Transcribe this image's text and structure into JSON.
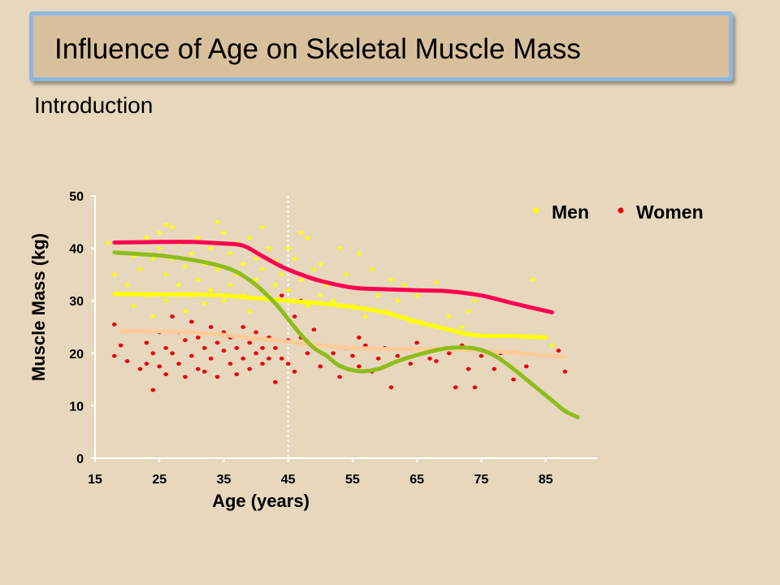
{
  "slide": {
    "title": "Influence of Age on Skeletal Muscle Mass",
    "subtitle": "Introduction"
  },
  "chart_data": {
    "type": "scatter",
    "xlabel": "Age (years)",
    "ylabel": "Muscle Mass (kg)",
    "xlim": [
      15,
      93
    ],
    "ylim": [
      0,
      50
    ],
    "xticks": [
      15,
      25,
      35,
      45,
      55,
      65,
      75,
      85
    ],
    "yticks": [
      0,
      10,
      20,
      30,
      40,
      50
    ],
    "reference_line_x": 45,
    "legend": {
      "placement": "top-right",
      "entries": [
        {
          "label": "Men",
          "color": "#ffff00"
        },
        {
          "label": "Women",
          "color": "#e8000a"
        }
      ]
    },
    "scatter_series": [
      {
        "name": "Men",
        "color": "#ffff00",
        "points": [
          [
            17,
            41
          ],
          [
            18,
            35
          ],
          [
            18,
            25.5
          ],
          [
            20,
            33
          ],
          [
            21,
            38.5
          ],
          [
            21,
            29
          ],
          [
            22,
            36
          ],
          [
            23,
            42
          ],
          [
            23,
            31
          ],
          [
            24,
            38
          ],
          [
            24,
            27
          ],
          [
            25,
            43
          ],
          [
            25,
            40
          ],
          [
            26,
            44.5
          ],
          [
            26,
            35
          ],
          [
            26,
            30
          ],
          [
            27,
            44
          ],
          [
            27,
            38
          ],
          [
            28,
            41
          ],
          [
            28,
            33
          ],
          [
            29,
            36.5
          ],
          [
            29,
            28
          ],
          [
            30,
            39
          ],
          [
            30,
            31
          ],
          [
            31,
            42
          ],
          [
            31,
            34
          ],
          [
            32,
            37
          ],
          [
            32,
            29.5
          ],
          [
            33,
            40
          ],
          [
            33,
            32
          ],
          [
            34,
            45
          ],
          [
            34,
            36
          ],
          [
            35,
            43
          ],
          [
            35,
            30
          ],
          [
            36,
            39
          ],
          [
            36,
            33
          ],
          [
            37,
            41
          ],
          [
            37,
            35
          ],
          [
            38,
            37
          ],
          [
            38,
            31
          ],
          [
            39,
            42
          ],
          [
            39,
            28
          ],
          [
            40,
            38
          ],
          [
            40,
            34
          ],
          [
            41,
            44
          ],
          [
            41,
            36
          ],
          [
            42,
            40
          ],
          [
            42,
            31
          ],
          [
            43,
            37.5
          ],
          [
            43,
            33
          ],
          [
            44,
            35
          ],
          [
            45,
            40
          ],
          [
            45,
            32
          ],
          [
            46,
            38
          ],
          [
            46,
            30
          ],
          [
            47,
            43
          ],
          [
            47,
            34
          ],
          [
            48,
            42
          ],
          [
            48,
            29
          ],
          [
            49,
            36
          ],
          [
            50,
            37
          ],
          [
            50,
            31
          ],
          [
            51,
            33
          ],
          [
            52,
            30
          ],
          [
            53,
            40
          ],
          [
            54,
            35
          ],
          [
            55,
            29
          ],
          [
            56,
            39
          ],
          [
            57,
            27
          ],
          [
            58,
            36
          ],
          [
            59,
            31
          ],
          [
            60,
            28
          ],
          [
            61,
            34
          ],
          [
            62,
            30
          ],
          [
            63,
            33
          ],
          [
            64,
            26
          ],
          [
            65,
            31
          ],
          [
            66,
            25.5
          ],
          [
            68,
            33.5
          ],
          [
            70,
            27
          ],
          [
            72,
            25
          ],
          [
            73,
            28
          ],
          [
            74,
            30
          ],
          [
            83,
            34
          ],
          [
            86,
            21.5
          ]
        ]
      },
      {
        "name": "Women",
        "color": "#e8000a",
        "points": [
          [
            18,
            25.5
          ],
          [
            18,
            19.5
          ],
          [
            19,
            21.5
          ],
          [
            20,
            18.5
          ],
          [
            22,
            17
          ],
          [
            23,
            22
          ],
          [
            23,
            18
          ],
          [
            24,
            13
          ],
          [
            24,
            20
          ],
          [
            25,
            24
          ],
          [
            25,
            17.5
          ],
          [
            26,
            21
          ],
          [
            26,
            16
          ],
          [
            27,
            27
          ],
          [
            27,
            20
          ],
          [
            28,
            24
          ],
          [
            28,
            18
          ],
          [
            29,
            22.5
          ],
          [
            29,
            15.5
          ],
          [
            30,
            26
          ],
          [
            30,
            19.5
          ],
          [
            31,
            23
          ],
          [
            31,
            17
          ],
          [
            32,
            21
          ],
          [
            32,
            16.5
          ],
          [
            33,
            25
          ],
          [
            33,
            19
          ],
          [
            34,
            22
          ],
          [
            34,
            15.5
          ],
          [
            35,
            20.5
          ],
          [
            35,
            24
          ],
          [
            36,
            18
          ],
          [
            36,
            23
          ],
          [
            37,
            21
          ],
          [
            37,
            16
          ],
          [
            38,
            25
          ],
          [
            38,
            19
          ],
          [
            39,
            22
          ],
          [
            39,
            17
          ],
          [
            40,
            24
          ],
          [
            40,
            20
          ],
          [
            41,
            21
          ],
          [
            41,
            18
          ],
          [
            42,
            23
          ],
          [
            42,
            19
          ],
          [
            43,
            14.5
          ],
          [
            43,
            21
          ],
          [
            44,
            31
          ],
          [
            44,
            19
          ],
          [
            45,
            22.5
          ],
          [
            45,
            18
          ],
          [
            46,
            27
          ],
          [
            46,
            16.5
          ],
          [
            47,
            23
          ],
          [
            47,
            30
          ],
          [
            48,
            20
          ],
          [
            49,
            24.5
          ],
          [
            50,
            17.5
          ],
          [
            52,
            20
          ],
          [
            53,
            15.5
          ],
          [
            54,
            21
          ],
          [
            55,
            19.5
          ],
          [
            56,
            23
          ],
          [
            56,
            17.5
          ],
          [
            57,
            21.5
          ],
          [
            58,
            16.5
          ],
          [
            59,
            19
          ],
          [
            60,
            21
          ],
          [
            61,
            13.5
          ],
          [
            62,
            19.5
          ],
          [
            64,
            18
          ],
          [
            65,
            22
          ],
          [
            67,
            19
          ],
          [
            68,
            18.5
          ],
          [
            70,
            20
          ],
          [
            71,
            13.5
          ],
          [
            72,
            21.5
          ],
          [
            73,
            17
          ],
          [
            74,
            13.5
          ],
          [
            75,
            19.5
          ],
          [
            77,
            17
          ],
          [
            78,
            20
          ],
          [
            80,
            15
          ],
          [
            82,
            17.5
          ],
          [
            87,
            20.5
          ],
          [
            88,
            16.5
          ]
        ]
      }
    ],
    "trend_series": [
      {
        "color": "#ff0050",
        "points": [
          [
            18,
            41.1
          ],
          [
            25,
            41.2
          ],
          [
            30,
            41.2
          ],
          [
            35,
            40.9
          ],
          [
            38,
            40.5
          ],
          [
            41,
            38.5
          ],
          [
            44,
            36.5
          ],
          [
            47,
            35
          ],
          [
            50,
            33.8
          ],
          [
            55,
            32.5
          ],
          [
            60,
            32.2
          ],
          [
            65,
            32
          ],
          [
            70,
            31.8
          ],
          [
            75,
            31
          ],
          [
            80,
            29.5
          ],
          [
            86,
            27.8
          ]
        ]
      },
      {
        "color": "#ffff00",
        "points": [
          [
            18,
            31.3
          ],
          [
            25,
            31.2
          ],
          [
            30,
            31.2
          ],
          [
            35,
            31
          ],
          [
            40,
            30.5
          ],
          [
            45,
            30
          ],
          [
            50,
            29.5
          ],
          [
            55,
            28.8
          ],
          [
            60,
            27.8
          ],
          [
            65,
            26
          ],
          [
            70,
            24.5
          ],
          [
            73,
            23.6
          ],
          [
            76,
            23.3
          ],
          [
            80,
            23.3
          ],
          [
            85,
            23
          ]
        ]
      },
      {
        "color": "#ffcc99",
        "points": [
          [
            19,
            24.2
          ],
          [
            25,
            24.2
          ],
          [
            30,
            24
          ],
          [
            35,
            23.5
          ],
          [
            40,
            22.8
          ],
          [
            45,
            22.2
          ],
          [
            50,
            21.5
          ],
          [
            55,
            21
          ],
          [
            60,
            20.8
          ],
          [
            65,
            20.8
          ],
          [
            70,
            20.8
          ],
          [
            75,
            20.5
          ],
          [
            80,
            20.1
          ],
          [
            85,
            19.6
          ],
          [
            88,
            19.3
          ]
        ]
      },
      {
        "color": "#8ebd1a",
        "points": [
          [
            18,
            39.2
          ],
          [
            22,
            38.9
          ],
          [
            26,
            38.5
          ],
          [
            30,
            37.8
          ],
          [
            34,
            36.8
          ],
          [
            37,
            35.5
          ],
          [
            40,
            33
          ],
          [
            43,
            29.5
          ],
          [
            45,
            26.5
          ],
          [
            47,
            23.5
          ],
          [
            49,
            21
          ],
          [
            51,
            19.5
          ],
          [
            53,
            17.6
          ],
          [
            56,
            16.6
          ],
          [
            59,
            17
          ],
          [
            62,
            18.5
          ],
          [
            66,
            20
          ],
          [
            70,
            21
          ],
          [
            74,
            20.9
          ],
          [
            77,
            19.6
          ],
          [
            80,
            17
          ],
          [
            83,
            14
          ],
          [
            86,
            11
          ],
          [
            88,
            9
          ],
          [
            90,
            7.8
          ]
        ]
      }
    ]
  }
}
